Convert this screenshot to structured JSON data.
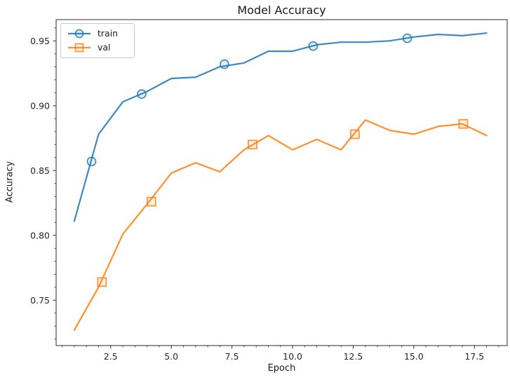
{
  "chart_data": {
    "type": "line",
    "title": "Model Accuracy",
    "xlabel": "Epoch",
    "ylabel": "Accuracy",
    "x": [
      1,
      2,
      3,
      4,
      5,
      6,
      7,
      8,
      9,
      10,
      11,
      12,
      13,
      14,
      15,
      16,
      17,
      18
    ],
    "series": [
      {
        "name": "train",
        "color": "#1f77b4",
        "marker": "circle",
        "values": [
          0.811,
          0.878,
          0.903,
          0.911,
          0.921,
          0.922,
          0.93,
          0.933,
          0.942,
          0.942,
          0.947,
          0.949,
          0.949,
          0.95,
          0.953,
          0.955,
          0.954,
          0.956
        ],
        "marker_points": [
          [
            1.71,
            0.857
          ],
          [
            3.78,
            0.909
          ],
          [
            7.19,
            0.932
          ],
          [
            10.85,
            0.946
          ],
          [
            14.73,
            0.952
          ]
        ]
      },
      {
        "name": "val",
        "color": "#ff7f0e",
        "marker": "square",
        "values": [
          0.727,
          0.76,
          0.801,
          0.824,
          0.848,
          0.856,
          0.849,
          0.866,
          0.877,
          0.866,
          0.874,
          0.866,
          0.889,
          0.881,
          0.878,
          0.884,
          0.886,
          0.877
        ],
        "marker_points": [
          [
            2.14,
            0.764
          ],
          [
            4.18,
            0.826
          ],
          [
            8.35,
            0.87
          ],
          [
            12.57,
            0.878
          ],
          [
            17.04,
            0.886
          ]
        ]
      }
    ],
    "legend": {
      "entries": [
        "train",
        "val"
      ],
      "position": "upper-left"
    },
    "xaxis": {
      "lim": [
        0.25,
        18.85
      ],
      "ticks": [
        2.5,
        5.0,
        7.5,
        10.0,
        12.5,
        15.0,
        17.5
      ],
      "tick_labels": [
        "2.5",
        "5.0",
        "7.5",
        "10.0",
        "12.5",
        "15.0",
        "17.5"
      ],
      "minor_tick_step": 0.5
    },
    "yaxis": {
      "lim": [
        0.715,
        0.9664
      ],
      "ticks": [
        0.75,
        0.8,
        0.85,
        0.9,
        0.95
      ],
      "tick_labels": [
        "0.75",
        "0.80",
        "0.85",
        "0.90",
        "0.95"
      ],
      "minor_tick_step": 0.01
    },
    "grid": false,
    "colors": {
      "spine": "#2b2b2b",
      "tick_text": "#262626",
      "text": "#1a1a1a"
    }
  }
}
